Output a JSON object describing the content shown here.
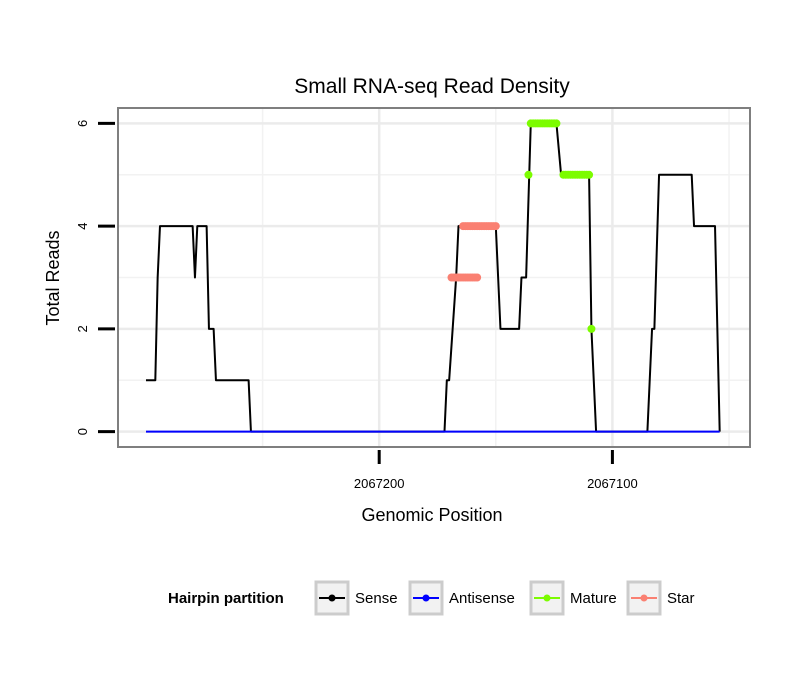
{
  "chart_data": {
    "type": "line",
    "title": "Small RNA-seq Read Density",
    "xlabel": "Genomic Position",
    "ylabel": "Total Reads",
    "x_tick_labels": [
      "2067200",
      "2067100"
    ],
    "y_tick_labels": [
      "0",
      "2",
      "4",
      "6"
    ],
    "y_ticks": [
      0,
      2,
      4,
      6
    ],
    "x_ticks": [
      2067200,
      2067100
    ],
    "xlim": [
      2067312,
      2067041
    ],
    "ylim": [
      -0.3,
      6.3
    ],
    "x_reversed": true,
    "grid": true,
    "legend": {
      "title": "Hairpin partition",
      "position": "bottom",
      "entries": [
        {
          "name": "Sense",
          "color": "#000000"
        },
        {
          "name": "Antisense",
          "color": "#0000ff"
        },
        {
          "name": "Mature",
          "color": "#7cfc00"
        },
        {
          "name": "Star",
          "color": "#fa8072"
        }
      ]
    },
    "series": [
      {
        "name": "Sense",
        "color": "#000000",
        "kind": "line",
        "points": [
          [
            2067300,
            1
          ],
          [
            2067296,
            1
          ],
          [
            2067295,
            3
          ],
          [
            2067294,
            4
          ],
          [
            2067280,
            4
          ],
          [
            2067279,
            3
          ],
          [
            2067278,
            4
          ],
          [
            2067274,
            4
          ],
          [
            2067273,
            2
          ],
          [
            2067271,
            2
          ],
          [
            2067270,
            1
          ],
          [
            2067256,
            1
          ],
          [
            2067255,
            0
          ],
          [
            2067172,
            0
          ],
          [
            2067171,
            1
          ],
          [
            2067170,
            1
          ],
          [
            2067167,
            3
          ],
          [
            2067166,
            4
          ],
          [
            2067150,
            4
          ],
          [
            2067149,
            3
          ],
          [
            2067148,
            2
          ],
          [
            2067140,
            2
          ],
          [
            2067139,
            3
          ],
          [
            2067137,
            3
          ],
          [
            2067135,
            6
          ],
          [
            2067124,
            6
          ],
          [
            2067122,
            5
          ],
          [
            2067110,
            5
          ],
          [
            2067109,
            2
          ],
          [
            2067107,
            0
          ],
          [
            2067085,
            0
          ],
          [
            2067083,
            2
          ],
          [
            2067082,
            2
          ],
          [
            2067080,
            5
          ],
          [
            2067066,
            5
          ],
          [
            2067065,
            4
          ],
          [
            2067056,
            4
          ],
          [
            2067054,
            0
          ]
        ]
      },
      {
        "name": "Antisense",
        "color": "#0000ff",
        "kind": "line",
        "points": [
          [
            2067300,
            0
          ],
          [
            2067054,
            0
          ]
        ]
      },
      {
        "name": "Mature",
        "color": "#7cfc00",
        "kind": "points",
        "points": [
          [
            2067136,
            5
          ],
          [
            2067135,
            6
          ],
          [
            2067134,
            6
          ],
          [
            2067133,
            6
          ],
          [
            2067132,
            6
          ],
          [
            2067131,
            6
          ],
          [
            2067130,
            6
          ],
          [
            2067129,
            6
          ],
          [
            2067128,
            6
          ],
          [
            2067127,
            6
          ],
          [
            2067126,
            6
          ],
          [
            2067125,
            6
          ],
          [
            2067124,
            6
          ],
          [
            2067121,
            5
          ],
          [
            2067120,
            5
          ],
          [
            2067119,
            5
          ],
          [
            2067118,
            5
          ],
          [
            2067117,
            5
          ],
          [
            2067116,
            5
          ],
          [
            2067115,
            5
          ],
          [
            2067114,
            5
          ],
          [
            2067113,
            5
          ],
          [
            2067112,
            5
          ],
          [
            2067111,
            5
          ],
          [
            2067110,
            5
          ],
          [
            2067109,
            2
          ]
        ]
      },
      {
        "name": "Star",
        "color": "#fa8072",
        "kind": "points",
        "points": [
          [
            2067169,
            3
          ],
          [
            2067168,
            3
          ],
          [
            2067167,
            3
          ],
          [
            2067166,
            3
          ],
          [
            2067165,
            3
          ],
          [
            2067164,
            3
          ],
          [
            2067163,
            3
          ],
          [
            2067162,
            3
          ],
          [
            2067161,
            3
          ],
          [
            2067160,
            3
          ],
          [
            2067159,
            3
          ],
          [
            2067158,
            3
          ],
          [
            2067164,
            4
          ],
          [
            2067163,
            4
          ],
          [
            2067162,
            4
          ],
          [
            2067161,
            4
          ],
          [
            2067160,
            4
          ],
          [
            2067159,
            4
          ],
          [
            2067158,
            4
          ],
          [
            2067157,
            4
          ],
          [
            2067156,
            4
          ],
          [
            2067155,
            4
          ],
          [
            2067154,
            4
          ],
          [
            2067153,
            4
          ],
          [
            2067152,
            4
          ],
          [
            2067151,
            4
          ],
          [
            2067150,
            4
          ]
        ]
      }
    ]
  }
}
